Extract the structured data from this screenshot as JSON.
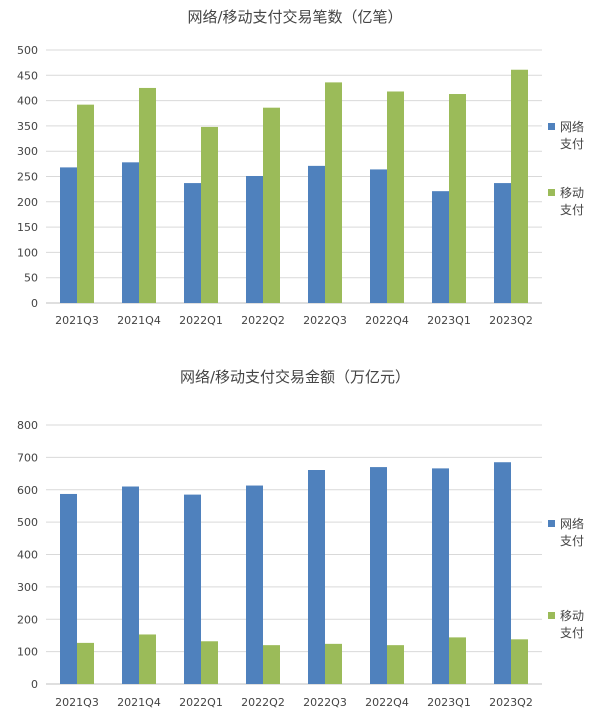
{
  "chart_data": [
    {
      "type": "bar",
      "title": "网络/移动支付交易笔数（亿笔）",
      "categories": [
        "2021Q3",
        "2021Q4",
        "2022Q1",
        "2022Q2",
        "2022Q3",
        "2022Q4",
        "2023Q1",
        "2023Q2"
      ],
      "ylim": [
        0,
        500
      ],
      "yticks": [
        0,
        50,
        100,
        150,
        200,
        250,
        300,
        350,
        400,
        450,
        500
      ],
      "grid": true,
      "legend_position": "right",
      "series": [
        {
          "name_line1": "网络",
          "name_line2": "支付",
          "color": "#4f81bd",
          "values": [
            268,
            278,
            237,
            251,
            271,
            264,
            221,
            237
          ]
        },
        {
          "name_line1": "移动",
          "name_line2": "支付",
          "color": "#9bbb59",
          "values": [
            392,
            425,
            348,
            386,
            436,
            418,
            413,
            461
          ]
        }
      ]
    },
    {
      "type": "bar",
      "title": "网络/移动支付交易金额（万亿元）",
      "categories": [
        "2021Q3",
        "2021Q4",
        "2022Q1",
        "2022Q2",
        "2022Q3",
        "2022Q4",
        "2023Q1",
        "2023Q2"
      ],
      "ylim": [
        0,
        800
      ],
      "yticks": [
        0,
        100,
        200,
        300,
        400,
        500,
        600,
        700,
        800
      ],
      "grid": true,
      "legend_position": "right",
      "series": [
        {
          "name_line1": "网络",
          "name_line2": "支付",
          "color": "#4f81bd",
          "values": [
            587,
            610,
            585,
            613,
            661,
            670,
            666,
            685
          ]
        },
        {
          "name_line1": "移动",
          "name_line2": "支付",
          "color": "#9bbb59",
          "values": [
            127,
            153,
            132,
            120,
            124,
            120,
            144,
            138
          ]
        }
      ]
    }
  ]
}
